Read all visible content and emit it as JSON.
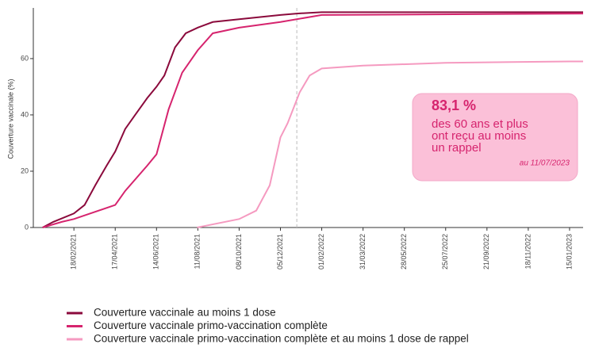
{
  "chart_data": {
    "type": "line",
    "ylabel": "Couverture vaccinale (%)",
    "ylim": [
      0,
      78
    ],
    "yticks": [
      0,
      20,
      40,
      60
    ],
    "xlim": [
      "23/12/2020",
      "03/02/2023"
    ],
    "xticks": [
      "18/02/2021",
      "17/04/2021",
      "14/06/2021",
      "11/08/2021",
      "08/10/2021",
      "05/12/2021",
      "01/02/2022",
      "31/03/2022",
      "28/05/2022",
      "25/07/2022",
      "21/09/2022",
      "18/11/2022",
      "15/01/2023"
    ],
    "reference_line_x": "28/12/2021",
    "series": [
      {
        "name": "Couverture vaccinale au moins 1 dose",
        "color": "#8b0a3c",
        "x": [
          "05/01/2021",
          "20/01/2021",
          "18/02/2021",
          "05/03/2021",
          "20/03/2021",
          "05/04/2021",
          "17/04/2021",
          "01/05/2021",
          "15/05/2021",
          "01/06/2021",
          "14/06/2021",
          "25/06/2021",
          "10/07/2021",
          "25/07/2021",
          "11/08/2021",
          "01/09/2021",
          "08/10/2021",
          "05/12/2021",
          "28/12/2021",
          "01/02/2022",
          "15/01/2023",
          "03/02/2023"
        ],
        "values": [
          0,
          2,
          5,
          8,
          15,
          22,
          27,
          35,
          40,
          46,
          50,
          54,
          64,
          69,
          71,
          73,
          74,
          75.5,
          76,
          76.5,
          76.5,
          76.5
        ]
      },
      {
        "name": "Couverture vaccinale primo-vaccination complète",
        "color": "#d6246e",
        "x": [
          "05/01/2021",
          "01/02/2021",
          "18/02/2021",
          "17/04/2021",
          "01/05/2021",
          "01/06/2021",
          "14/06/2021",
          "01/07/2021",
          "20/07/2021",
          "11/08/2021",
          "01/09/2021",
          "08/10/2021",
          "05/12/2021",
          "01/02/2022",
          "03/02/2023"
        ],
        "values": [
          0,
          2,
          3,
          8,
          13,
          22,
          26,
          42,
          55,
          63,
          69,
          71,
          73,
          75.5,
          76
        ]
      },
      {
        "name": "Couverture vaccinale primo-vaccination complète et au moins 1 dose de rappel",
        "color": "#f59ac0",
        "x": [
          "10/08/2021",
          "08/10/2021",
          "01/11/2021",
          "20/11/2021",
          "05/12/2021",
          "15/12/2021",
          "01/01/2022",
          "15/01/2022",
          "01/02/2022",
          "31/03/2022",
          "25/07/2022",
          "15/01/2023",
          "03/02/2023"
        ],
        "values": [
          0,
          3,
          6,
          15,
          32,
          37,
          48,
          54,
          56.5,
          57.5,
          58.5,
          59,
          59
        ]
      }
    ],
    "annotation": {
      "headline": "83,1 %",
      "lines": [
        "des 60 ans et plus",
        "ont reçu au moins",
        "un rappel"
      ],
      "date": "au 11/07/2023"
    }
  }
}
